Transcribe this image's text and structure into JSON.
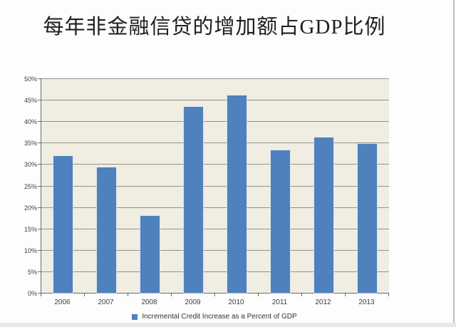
{
  "title": "每年非金融信贷的增加额占GDP比例",
  "chart_data": {
    "type": "bar",
    "title": "每年非金融信贷的增加额占GDP比例",
    "categories": [
      "2006",
      "2007",
      "2008",
      "2009",
      "2010",
      "2011",
      "2012",
      "2013"
    ],
    "values": [
      31.9,
      29.2,
      17.9,
      43.4,
      46.0,
      33.3,
      36.2,
      34.7
    ],
    "unit": "%",
    "legend": "Incremental Credit Increase as a Percent of GDP",
    "xlabel": "",
    "ylabel": "",
    "ylim": [
      0,
      50
    ],
    "ytick_step": 5,
    "ytick_labels": [
      "0%",
      "5%",
      "10%",
      "15%",
      "20%",
      "25%",
      "30%",
      "35%",
      "40%",
      "45%",
      "50%"
    ],
    "grid": true,
    "legend_position": "bottom",
    "colors": {
      "bar": "#4E81BD",
      "plot_bg": "#F0EDE3",
      "gridline": "#95928A",
      "axis": "#6E6B64",
      "text": "#3D3D3D"
    }
  }
}
